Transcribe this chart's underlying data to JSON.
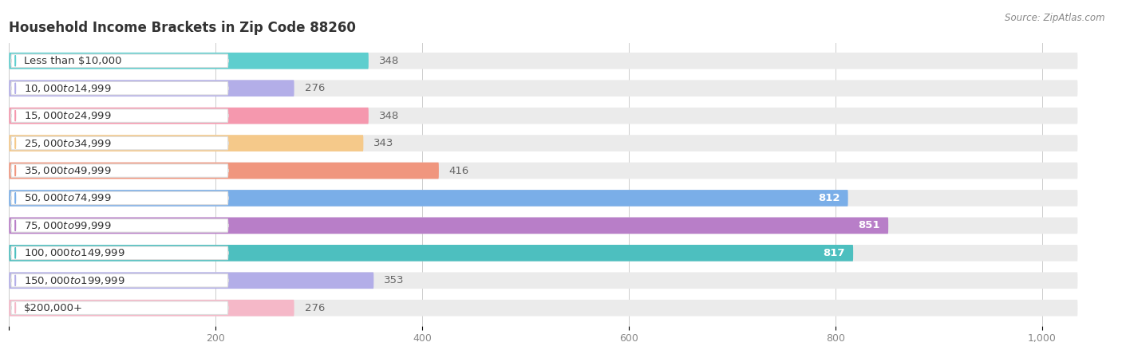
{
  "title": "Household Income Brackets in Zip Code 88260",
  "source": "Source: ZipAtlas.com",
  "categories": [
    "Less than $10,000",
    "$10,000 to $14,999",
    "$15,000 to $24,999",
    "$25,000 to $34,999",
    "$35,000 to $49,999",
    "$50,000 to $74,999",
    "$75,000 to $99,999",
    "$100,000 to $149,999",
    "$150,000 to $199,999",
    "$200,000+"
  ],
  "values": [
    348,
    276,
    348,
    343,
    416,
    812,
    851,
    817,
    353,
    276
  ],
  "bar_colors": [
    "#5ecece",
    "#b3aee8",
    "#f598ae",
    "#f5c98a",
    "#f0967e",
    "#7aaee8",
    "#b87ec8",
    "#4dbfbf",
    "#b3aee8",
    "#f5b8c8"
  ],
  "xlim_max": 1050,
  "value_threshold": 500,
  "background_color": "#ffffff",
  "bar_bg_color": "#ebebeb",
  "label_bg_color": "#ffffff",
  "title_fontsize": 12,
  "label_fontsize": 9.5,
  "value_fontsize": 9.5,
  "source_fontsize": 8.5,
  "xtick_labels": [
    "",
    "200",
    "400",
    "600",
    "800",
    "1,000"
  ],
  "xtick_vals": [
    0,
    200,
    400,
    600,
    800,
    1000
  ]
}
